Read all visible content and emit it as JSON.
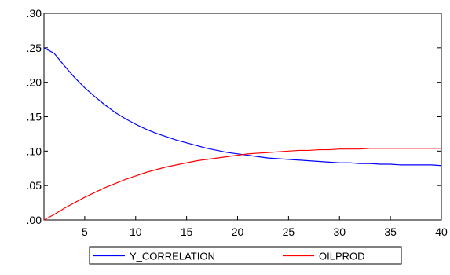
{
  "chart_data": {
    "type": "line",
    "title": "",
    "xlabel": "",
    "ylabel": "",
    "xlim": [
      1,
      40
    ],
    "ylim": [
      0,
      0.3
    ],
    "x_ticks": [
      5,
      10,
      15,
      20,
      25,
      30,
      35,
      40
    ],
    "x_tick_labels": [
      "5",
      "10",
      "15",
      "20",
      "25",
      "30",
      "35",
      "40"
    ],
    "y_ticks": [
      0,
      0.05,
      0.1,
      0.15,
      0.2,
      0.25,
      0.3
    ],
    "y_tick_labels": [
      ".00",
      ".05",
      ".10",
      ".15",
      ".20",
      ".25",
      ".30"
    ],
    "grid": false,
    "legend_position": "bottom-center",
    "x": [
      1,
      2,
      3,
      4,
      5,
      6,
      7,
      8,
      9,
      10,
      11,
      12,
      13,
      14,
      15,
      16,
      17,
      18,
      19,
      20,
      21,
      22,
      23,
      24,
      25,
      26,
      27,
      28,
      29,
      30,
      31,
      32,
      33,
      34,
      35,
      36,
      37,
      38,
      39,
      40
    ],
    "series": [
      {
        "name": "Y_CORRELATION",
        "color": "#0000ff",
        "values": [
          0.25,
          0.242,
          0.224,
          0.207,
          0.192,
          0.179,
          0.167,
          0.156,
          0.147,
          0.139,
          0.132,
          0.126,
          0.121,
          0.116,
          0.112,
          0.108,
          0.104,
          0.101,
          0.098,
          0.096,
          0.094,
          0.092,
          0.09,
          0.089,
          0.088,
          0.087,
          0.086,
          0.085,
          0.084,
          0.083,
          0.083,
          0.082,
          0.082,
          0.081,
          0.081,
          0.08,
          0.08,
          0.08,
          0.08,
          0.079
        ]
      },
      {
        "name": "OILPROD",
        "color": "#ff0000",
        "values": [
          0.0,
          0.008,
          0.017,
          0.025,
          0.033,
          0.04,
          0.047,
          0.053,
          0.059,
          0.064,
          0.069,
          0.073,
          0.077,
          0.08,
          0.083,
          0.086,
          0.088,
          0.09,
          0.092,
          0.094,
          0.096,
          0.097,
          0.098,
          0.099,
          0.1,
          0.101,
          0.101,
          0.102,
          0.102,
          0.103,
          0.103,
          0.103,
          0.104,
          0.104,
          0.104,
          0.104,
          0.104,
          0.104,
          0.104,
          0.104
        ]
      }
    ]
  }
}
